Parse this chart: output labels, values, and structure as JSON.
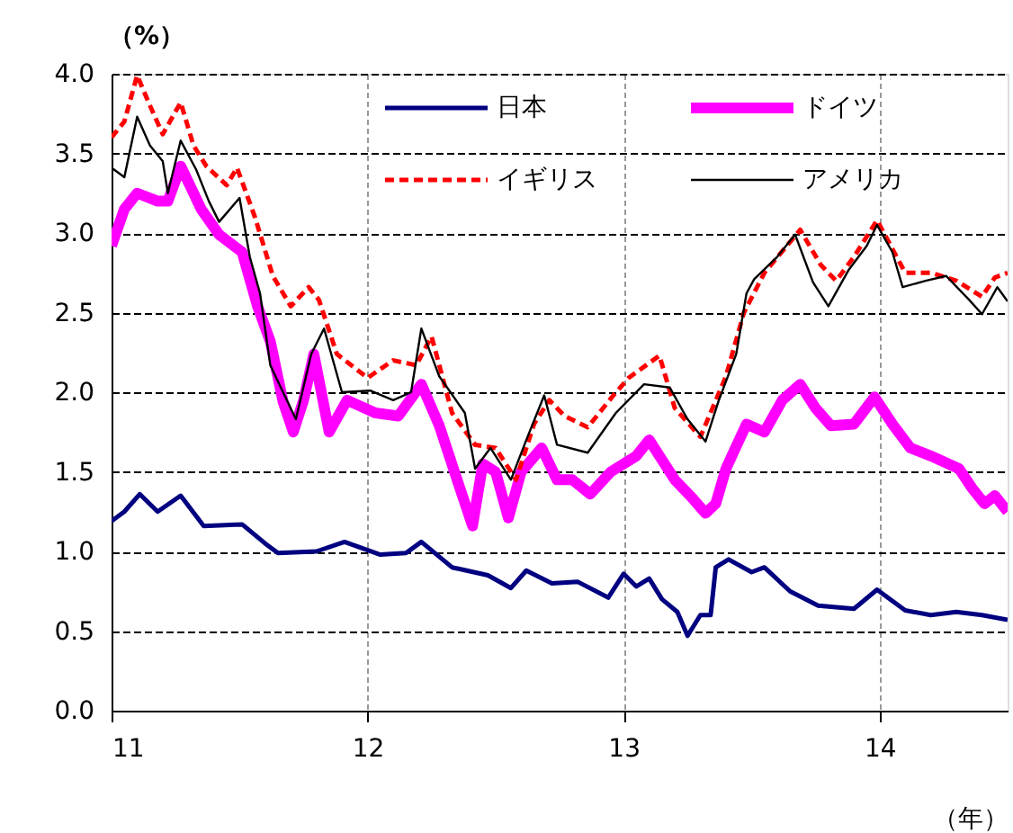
{
  "chart_data": {
    "type": "line",
    "xlabel": "（年）",
    "ylabel": "（%）",
    "xlim": [
      11,
      14.5
    ],
    "xticks": [
      11,
      12,
      13,
      14
    ],
    "ylim": [
      0,
      4
    ],
    "yticks": [
      {
        "value": 0,
        "label": "0.0"
      },
      0.5,
      {
        "value": 1,
        "label": "1.0"
      },
      1.5,
      {
        "value": 2,
        "label": "2.0"
      },
      2.5,
      {
        "value": 3,
        "label": "3.0"
      },
      3.5,
      {
        "value": 4,
        "label": "4.0"
      }
    ],
    "grid": true,
    "legend": "top right",
    "marker": "none",
    "series": [
      {
        "name": "日本",
        "color": "#000080",
        "line_style": "solid",
        "x": [
          11.0,
          11.05,
          11.11,
          11.18,
          11.27,
          11.36,
          11.51,
          11.6,
          11.65,
          11.8,
          11.91,
          12.05,
          12.15,
          12.21,
          12.33,
          12.47,
          12.56,
          12.62,
          12.72,
          12.82,
          12.94,
          13.0,
          13.05,
          13.1,
          13.15,
          13.21,
          13.25,
          13.3,
          13.34,
          13.36,
          13.41,
          13.5,
          13.55,
          13.65,
          13.76,
          13.9,
          13.99,
          14.1,
          14.2,
          14.3,
          14.4,
          14.5
        ],
        "values": [
          1.19,
          1.25,
          1.36,
          1.25,
          1.35,
          1.16,
          1.17,
          1.05,
          0.99,
          1.0,
          1.06,
          0.98,
          0.99,
          1.06,
          0.9,
          0.85,
          0.77,
          0.88,
          0.8,
          0.81,
          0.71,
          0.86,
          0.78,
          0.83,
          0.7,
          0.62,
          0.47,
          0.6,
          0.6,
          0.9,
          0.95,
          0.87,
          0.9,
          0.75,
          0.66,
          0.64,
          0.76,
          0.63,
          0.6,
          0.62,
          0.6,
          0.57
        ]
      },
      {
        "name": "ドイツ",
        "color": "#ff00ff",
        "line_style": "solid",
        "x": [
          11.0,
          11.05,
          11.1,
          11.18,
          11.22,
          11.27,
          11.35,
          11.42,
          11.51,
          11.57,
          11.62,
          11.67,
          11.71,
          11.75,
          11.79,
          11.85,
          11.92,
          12.03,
          12.12,
          12.21,
          12.28,
          12.36,
          12.41,
          12.45,
          12.5,
          12.55,
          12.6,
          12.68,
          12.74,
          12.8,
          12.87,
          12.95,
          13.05,
          13.1,
          13.2,
          13.26,
          13.32,
          13.36,
          13.4,
          13.48,
          13.55,
          13.62,
          13.69,
          13.75,
          13.81,
          13.9,
          13.98,
          14.05,
          14.12,
          14.2,
          14.31,
          14.36,
          14.41,
          14.45,
          14.5
        ],
        "values": [
          2.92,
          3.15,
          3.25,
          3.2,
          3.2,
          3.42,
          3.15,
          2.99,
          2.88,
          2.54,
          2.32,
          1.94,
          1.75,
          1.95,
          2.24,
          1.75,
          1.95,
          1.87,
          1.85,
          2.05,
          1.79,
          1.4,
          1.16,
          1.55,
          1.5,
          1.21,
          1.5,
          1.65,
          1.45,
          1.45,
          1.36,
          1.5,
          1.6,
          1.7,
          1.45,
          1.35,
          1.24,
          1.3,
          1.52,
          1.8,
          1.75,
          1.95,
          2.05,
          1.9,
          1.79,
          1.8,
          1.97,
          1.8,
          1.65,
          1.6,
          1.52,
          1.4,
          1.3,
          1.35,
          1.25
        ]
      },
      {
        "name": "イギリス",
        "color": "#ff0000",
        "line_style": "dashed",
        "x": [
          11.0,
          11.05,
          11.1,
          11.15,
          11.2,
          11.27,
          11.32,
          11.37,
          11.45,
          11.49,
          11.56,
          11.63,
          11.7,
          11.77,
          11.81,
          11.88,
          12.0,
          12.1,
          12.19,
          12.25,
          12.33,
          12.42,
          12.5,
          12.58,
          12.65,
          12.71,
          12.77,
          12.86,
          12.96,
          13.02,
          13.14,
          13.2,
          13.3,
          13.4,
          13.47,
          13.55,
          13.69,
          13.77,
          13.83,
          13.9,
          13.99,
          14.05,
          14.1,
          14.2,
          14.3,
          14.35,
          14.4,
          14.45,
          14.5
        ],
        "values": [
          3.6,
          3.7,
          3.99,
          3.8,
          3.62,
          3.82,
          3.55,
          3.42,
          3.3,
          3.41,
          3.1,
          2.73,
          2.54,
          2.66,
          2.58,
          2.24,
          2.09,
          2.2,
          2.17,
          2.35,
          1.87,
          1.67,
          1.65,
          1.45,
          1.8,
          1.95,
          1.85,
          1.78,
          1.98,
          2.09,
          2.23,
          1.9,
          1.72,
          2.1,
          2.5,
          2.75,
          3.02,
          2.8,
          2.7,
          2.85,
          3.08,
          2.9,
          2.75,
          2.75,
          2.7,
          2.65,
          2.6,
          2.72,
          2.75
        ]
      },
      {
        "name": "アメリカ",
        "color": "#000000",
        "line_style": "solid",
        "x": [
          11.0,
          11.05,
          11.1,
          11.15,
          11.2,
          11.22,
          11.27,
          11.33,
          11.38,
          11.42,
          11.5,
          11.54,
          11.58,
          11.62,
          11.67,
          11.72,
          11.78,
          11.83,
          11.9,
          12.01,
          12.1,
          12.17,
          12.21,
          12.28,
          12.38,
          12.42,
          12.48,
          12.56,
          12.62,
          12.69,
          12.74,
          12.86,
          12.97,
          13.08,
          13.18,
          13.25,
          13.32,
          13.37,
          13.44,
          13.48,
          13.51,
          13.6,
          13.67,
          13.74,
          13.8,
          13.88,
          13.95,
          13.99,
          14.05,
          14.09,
          14.18,
          14.26,
          14.35,
          14.4,
          14.46,
          14.5
        ],
        "values": [
          3.41,
          3.35,
          3.73,
          3.55,
          3.45,
          3.25,
          3.58,
          3.4,
          3.2,
          3.07,
          3.22,
          2.85,
          2.62,
          2.17,
          2.0,
          1.83,
          2.24,
          2.4,
          2.0,
          2.01,
          1.95,
          2.0,
          2.4,
          2.1,
          1.87,
          1.52,
          1.65,
          1.45,
          1.7,
          1.98,
          1.67,
          1.62,
          1.87,
          2.05,
          2.03,
          1.83,
          1.69,
          1.94,
          2.24,
          2.62,
          2.71,
          2.85,
          2.99,
          2.69,
          2.54,
          2.77,
          2.92,
          3.05,
          2.88,
          2.66,
          2.7,
          2.73,
          2.58,
          2.49,
          2.66,
          2.57
        ]
      }
    ]
  }
}
